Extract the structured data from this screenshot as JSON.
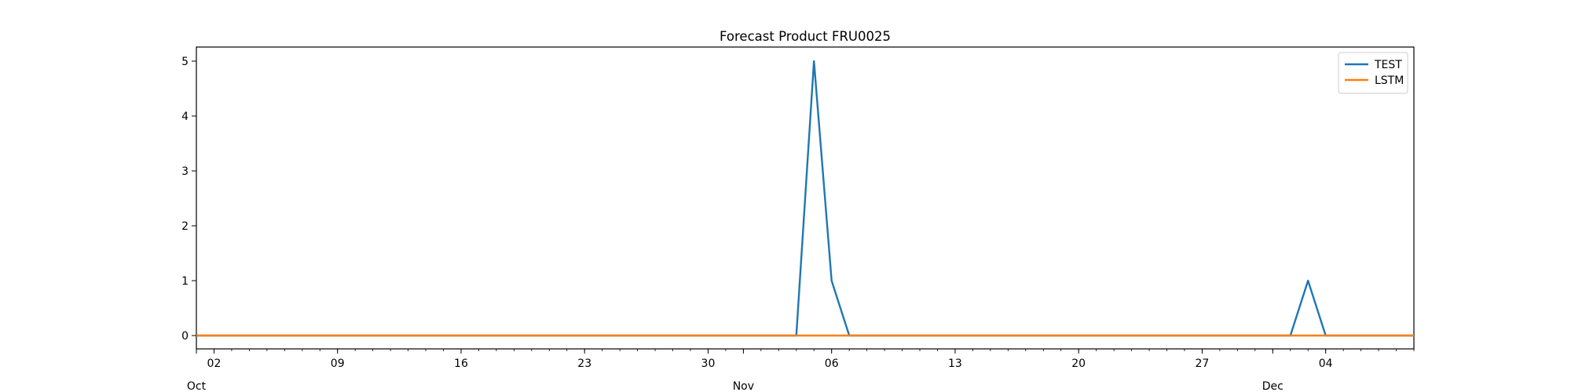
{
  "chart_data": {
    "type": "line",
    "title": "Forecast Product FRU0025",
    "xlabel": "",
    "ylabel": "",
    "x_start": "2023-10-01",
    "x_end": "2023-12-09",
    "ylim": [
      -0.25,
      5.25
    ],
    "y_ticks": [
      0,
      1,
      2,
      3,
      4,
      5
    ],
    "x_major_ticks": [
      {
        "date": "2023-10-02",
        "label": "02"
      },
      {
        "date": "2023-10-09",
        "label": "09"
      },
      {
        "date": "2023-10-16",
        "label": "16"
      },
      {
        "date": "2023-10-23",
        "label": "23"
      },
      {
        "date": "2023-10-30",
        "label": "30"
      },
      {
        "date": "2023-11-06",
        "label": "06"
      },
      {
        "date": "2023-11-13",
        "label": "13"
      },
      {
        "date": "2023-11-20",
        "label": "20"
      },
      {
        "date": "2023-11-27",
        "label": "27"
      },
      {
        "date": "2023-12-04",
        "label": "04"
      }
    ],
    "x_month_labels": [
      {
        "date": "2023-10-01",
        "label": "Oct"
      },
      {
        "date": "2023-11-01",
        "label": "Nov"
      },
      {
        "date": "2023-12-01",
        "label": "Dec"
      }
    ],
    "grid": false,
    "legend_position": "top-right",
    "series": [
      {
        "name": "TEST",
        "color": "#1f77b4",
        "points": [
          {
            "x": "2023-10-01",
            "y": 0
          },
          {
            "x": "2023-11-04",
            "y": 0
          },
          {
            "x": "2023-11-05",
            "y": 5
          },
          {
            "x": "2023-11-06",
            "y": 1
          },
          {
            "x": "2023-11-07",
            "y": 0
          },
          {
            "x": "2023-12-02",
            "y": 0
          },
          {
            "x": "2023-12-03",
            "y": 1
          },
          {
            "x": "2023-12-04",
            "y": 0
          },
          {
            "x": "2023-12-09",
            "y": 0
          }
        ]
      },
      {
        "name": "LSTM",
        "color": "#ff7f0e",
        "points": [
          {
            "x": "2023-10-01",
            "y": 0
          },
          {
            "x": "2023-12-09",
            "y": 0
          }
        ]
      }
    ]
  }
}
